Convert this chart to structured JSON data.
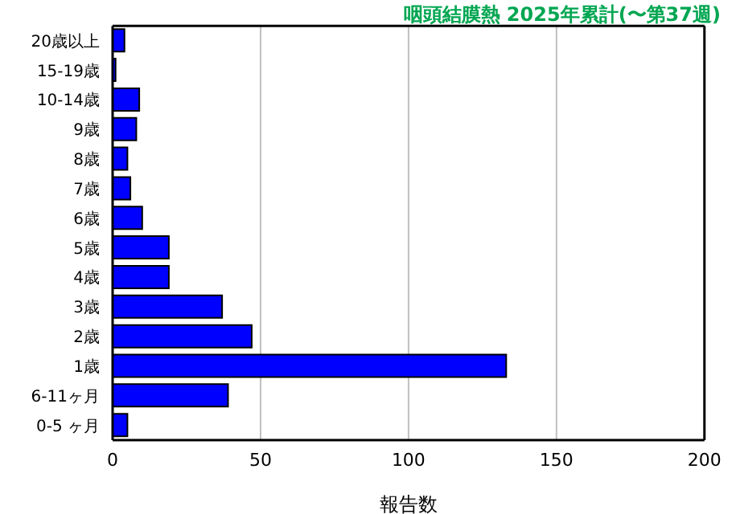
{
  "chart_data": {
    "type": "bar",
    "orientation": "horizontal",
    "title": "咽頭結膜熱 2025年累計(〜第37週)",
    "xlabel": "報告数",
    "categories": [
      "20歳以上",
      "15-19歳",
      "10-14歳",
      "9歳",
      "8歳",
      "7歳",
      "6歳",
      "5歳",
      "4歳",
      "3歳",
      "2歳",
      "1歳",
      "6-11ヶ月",
      "0-5 ヶ月"
    ],
    "values": [
      4,
      1,
      9,
      8,
      5,
      6,
      10,
      19,
      19,
      37,
      47,
      133,
      39,
      5
    ],
    "color": "#0000ff",
    "xlim": [
      0,
      200
    ],
    "xticks": [
      0,
      50,
      100,
      150,
      200
    ],
    "grid": "x"
  }
}
